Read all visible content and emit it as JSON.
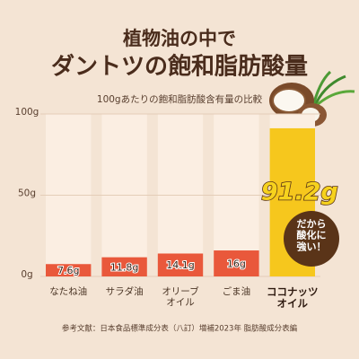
{
  "chart_data": {
    "type": "bar",
    "title": "植物油の中で",
    "subtitle": "ダントツの飽和脂肪酸量",
    "chart_title": "100gあたりの飽和脂肪酸含有量の比較",
    "categories": [
      "なたね油",
      "サラダ油",
      "オリーブ\nオイル",
      "ごま油",
      "ココナッツ\nオイル"
    ],
    "values": [
      7.6,
      11.8,
      14.1,
      16,
      91.2
    ],
    "value_labels": [
      "7.6g",
      "11.8g",
      "14.1g",
      "16g",
      "91.2g"
    ],
    "colors": [
      "#e9583b",
      "#e9583b",
      "#e9583b",
      "#e9583b",
      "#f6c71d"
    ],
    "ylim": [
      0,
      100
    ],
    "yticks": [
      {
        "value": 0,
        "label": "0g"
      },
      {
        "value": 50,
        "label": "50g"
      },
      {
        "value": 100,
        "label": "100g"
      }
    ],
    "grid": true,
    "annotation": "だから\n酸化に\n強い！",
    "source": "参考文献：日本食品標準成分表（八訂）増補2023年 脂肪酸成分表編"
  }
}
